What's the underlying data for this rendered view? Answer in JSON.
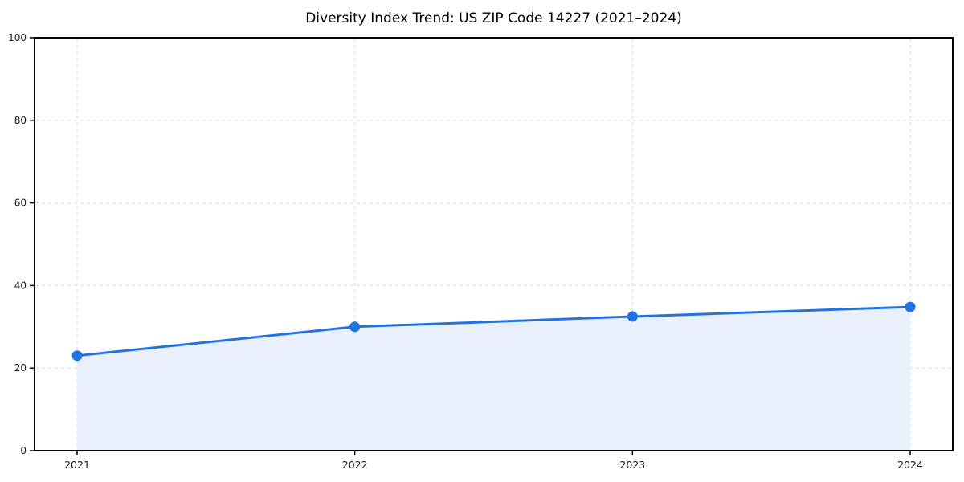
{
  "chart_data": {
    "type": "line",
    "title": "Diversity Index Trend: US ZIP Code 14227 (2021–2024)",
    "categories": [
      "2021",
      "2022",
      "2023",
      "2024"
    ],
    "series": [
      {
        "name": "Diversity Index",
        "values": [
          23,
          30,
          32.5,
          34.8
        ]
      }
    ],
    "xlabel": "",
    "ylabel": "",
    "ylim": [
      0,
      100
    ],
    "yticks": [
      0,
      20,
      40,
      60,
      80,
      100
    ],
    "grid": true,
    "grid_style": "dashed",
    "legend_position": "none",
    "area_fill": true,
    "marker": "circle",
    "colors": {
      "line": "#2272e0",
      "marker": "#2272e0",
      "area_fill": "#e9f0fc",
      "grid": "#e0e0e0",
      "axis": "#000000",
      "tick_label": "#1a1a1a",
      "title": "#000000",
      "background": "#ffffff"
    }
  }
}
